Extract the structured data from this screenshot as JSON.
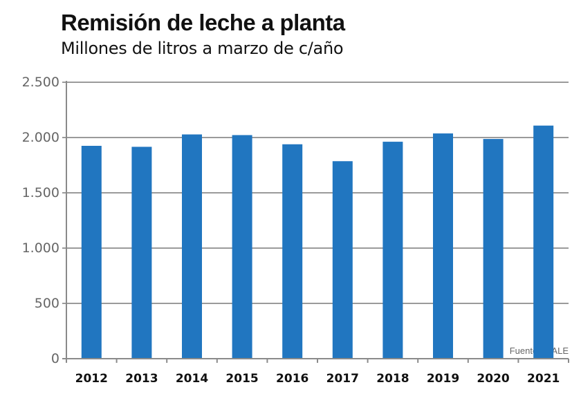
{
  "colors": {
    "bar": "#2176c0",
    "grid": "#9a9a9a",
    "axis": "#8a8a8a"
  },
  "chart_data": {
    "type": "bar",
    "title": "Remisión de leche a planta",
    "subtitle": "Millones de litros a marzo de c/año",
    "xlabel": "",
    "ylabel": "",
    "categories": [
      "2012",
      "2013",
      "2014",
      "2015",
      "2016",
      "2017",
      "2018",
      "2019",
      "2020",
      "2021"
    ],
    "values": [
      1925,
      1916,
      2028,
      2022,
      1939,
      1786,
      1962,
      2037,
      1987,
      2108
    ],
    "ylim": [
      0,
      2500
    ],
    "yticks": [
      0,
      500,
      1000,
      1500,
      2000,
      2500
    ],
    "ytick_labels": [
      "0",
      "500",
      "1.000",
      "1.500",
      "2.000",
      "2.500"
    ],
    "grid": true,
    "legend": "none",
    "source": "Fuente: INALE"
  }
}
